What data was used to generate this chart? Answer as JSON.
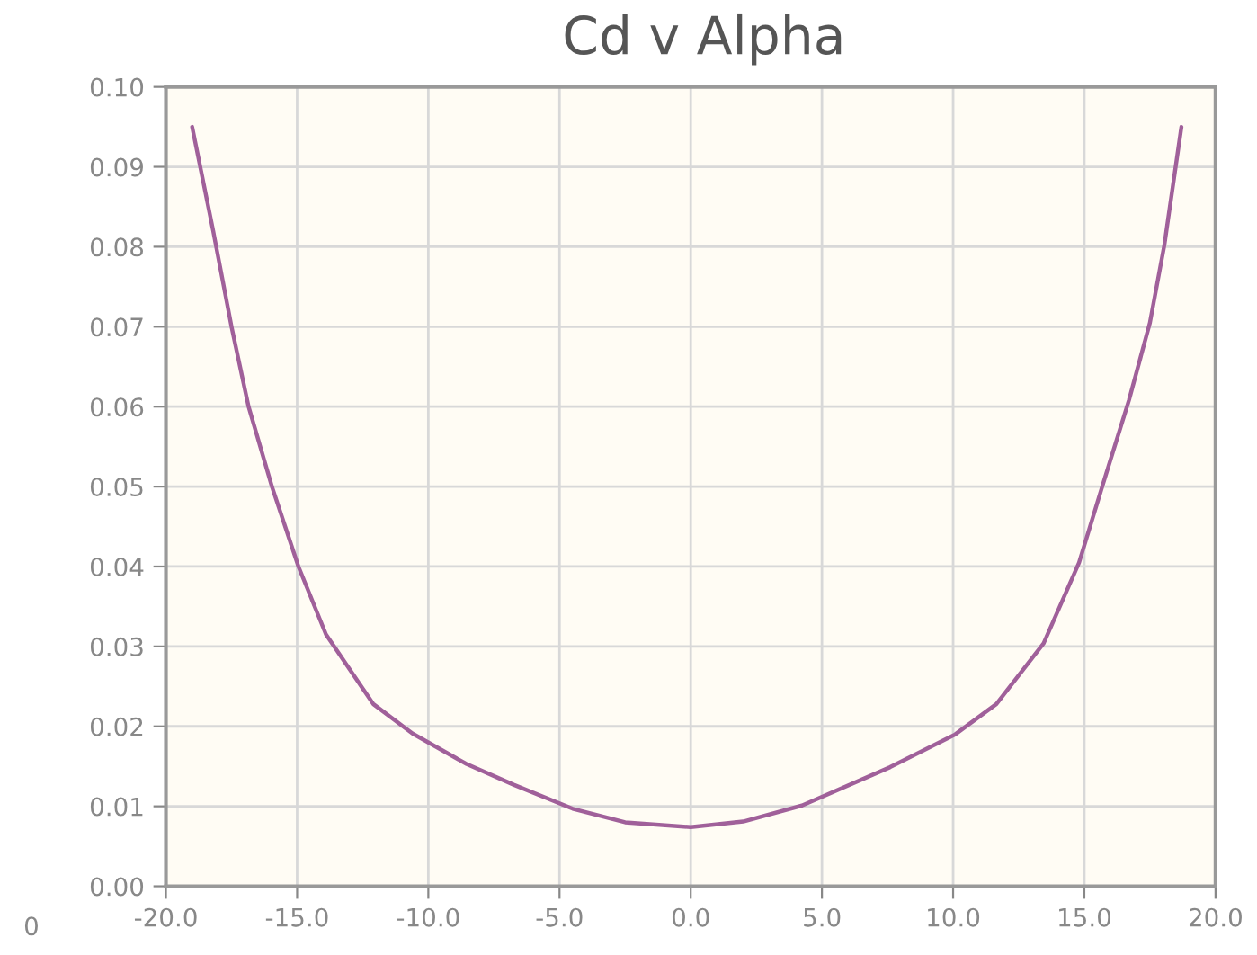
{
  "chart_data": {
    "type": "line",
    "title": "Cd v Alpha",
    "series": [
      {
        "color": "#a0609a",
        "x": [
          -19.0,
          -18.2,
          -17.5,
          -16.85,
          -15.96,
          -14.95,
          -13.9,
          -12.1,
          -10.6,
          -8.55,
          -6.75,
          -4.5,
          -2.5,
          0.0,
          2.0,
          4.24,
          7.6,
          10.08,
          11.65,
          13.45,
          14.8,
          15.7,
          16.7,
          17.5,
          18.05,
          18.7
        ],
        "values": [
          0.095,
          0.082,
          0.07,
          0.06,
          0.05,
          0.04,
          0.0315,
          0.0228,
          0.0191,
          0.0153,
          0.0127,
          0.0097,
          0.008,
          0.0074,
          0.0081,
          0.0101,
          0.0149,
          0.019,
          0.0228,
          0.0304,
          0.0405,
          0.0502,
          0.0608,
          0.0705,
          0.0802,
          0.095
        ]
      }
    ],
    "xlim": [
      -20,
      20
    ],
    "xticks": [
      {
        "value": -20,
        "label": "-20.0"
      },
      {
        "value": -15,
        "label": "-15.0"
      },
      {
        "value": -10,
        "label": "-10.0"
      },
      {
        "value": -5,
        "label": "-5.0"
      },
      {
        "value": 0,
        "label": "0.0"
      },
      {
        "value": 5,
        "label": "5.0"
      },
      {
        "value": 10,
        "label": "10.0"
      },
      {
        "value": 15,
        "label": "15.0"
      },
      {
        "value": 20,
        "label": "20.0"
      }
    ],
    "ylim": [
      0,
      0.1
    ],
    "yticks": [
      {
        "value": 0,
        "label": "0.00"
      },
      {
        "value": 0.01,
        "label": "0.01"
      },
      {
        "value": 0.02,
        "label": "0.02"
      },
      {
        "value": 0.03,
        "label": "0.03"
      },
      {
        "value": 0.04,
        "label": "0.04"
      },
      {
        "value": 0.05,
        "label": "0.05"
      },
      {
        "value": 0.06,
        "label": "0.06"
      },
      {
        "value": 0.07,
        "label": "0.07"
      },
      {
        "value": 0.08,
        "label": "0.08"
      },
      {
        "value": 0.09,
        "label": "0.09"
      },
      {
        "value": 0.1,
        "label": "0.10"
      }
    ],
    "grid": true,
    "annotations": [
      "0"
    ]
  }
}
